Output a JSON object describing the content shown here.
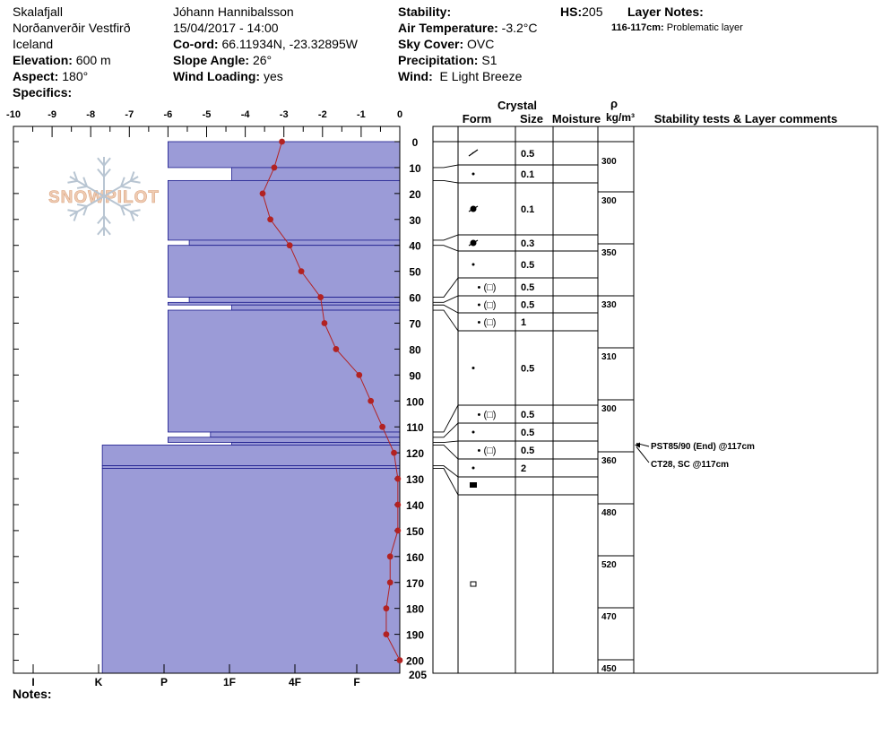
{
  "header": {
    "location_name": "Skalafjall",
    "region": "Norðanverðir Vestfirð",
    "country": "Iceland",
    "elevation_label": "Elevation:",
    "elevation_value": "600 m",
    "aspect_label": "Aspect:",
    "aspect_value": "180°",
    "specifics_label": "Specifics:",
    "observer": "Jóhann Hannibalsson",
    "datetime": "15/04/2017 - 14:00",
    "coord_label": "Co-ord:",
    "coord_value": "66.11934N, -23.32895W",
    "slope_label": "Slope Angle:",
    "slope_value": "26°",
    "wind_loading_label": "Wind Loading:",
    "wind_loading_value": "yes",
    "stability_label": "Stability:",
    "air_temp_label": "Air Temperature:",
    "air_temp_value": "-3.2°C",
    "sky_label": "Sky Cover:",
    "sky_value": "OVC",
    "precip_label": "Precipitation:",
    "precip_value": "S1",
    "wind_label": "Wind:",
    "wind_value": "E Light Breeze",
    "hs_label": "HS:",
    "hs_value": "205",
    "layer_notes_label": "Layer Notes:",
    "layer_note_depth": "116-117cm:",
    "layer_note_text": "Problematic layer"
  },
  "notes_label": "Notes:",
  "logo_text": "SNOWPILOT",
  "columns": {
    "crystal": "Crystal",
    "form": "Form",
    "size": "Size",
    "moisture": "Moisture",
    "rho": "ρ",
    "density_unit": "kg/m³",
    "stability": "Stability tests & Layer comments"
  },
  "stability_tests": [
    "PST85/90 (End) @117cm",
    "CT28, SC @117cm"
  ],
  "colors": {
    "hardness_fill": "#9b9bd7",
    "hardness_stroke": "#1a1a8c",
    "temp_line": "#b22222"
  },
  "chart_data": {
    "type": "snow_profile",
    "temp_axis": {
      "ticks": [
        -10,
        -9,
        -8,
        -7,
        -6,
        -5,
        -4,
        -3,
        -2,
        -1,
        0
      ],
      "range": [
        -10,
        0
      ]
    },
    "hardness_axis": [
      "I",
      "K",
      "P",
      "1F",
      "4F",
      "F"
    ],
    "depth_axis": {
      "ticks": [
        0,
        10,
        20,
        30,
        40,
        50,
        60,
        70,
        80,
        90,
        100,
        110,
        120,
        130,
        140,
        150,
        160,
        170,
        180,
        190,
        200
      ],
      "end_label": "205",
      "range": [
        0,
        205
      ]
    },
    "temperature": [
      {
        "depth": 0,
        "t": -3.05
      },
      {
        "depth": 10,
        "t": -3.25
      },
      {
        "depth": 20,
        "t": -3.55
      },
      {
        "depth": 30,
        "t": -3.35
      },
      {
        "depth": 40,
        "t": -2.85
      },
      {
        "depth": 50,
        "t": -2.55
      },
      {
        "depth": 60,
        "t": -2.05
      },
      {
        "depth": 70,
        "t": -1.95
      },
      {
        "depth": 80,
        "t": -1.65
      },
      {
        "depth": 90,
        "t": -1.05
      },
      {
        "depth": 100,
        "t": -0.75
      },
      {
        "depth": 110,
        "t": -0.45
      },
      {
        "depth": 120,
        "t": -0.15
      },
      {
        "depth": 130,
        "t": -0.05
      },
      {
        "depth": 140,
        "t": -0.05
      },
      {
        "depth": 150,
        "t": -0.05
      },
      {
        "depth": 160,
        "t": -0.25
      },
      {
        "depth": 170,
        "t": -0.25
      },
      {
        "depth": 180,
        "t": -0.35
      },
      {
        "depth": 190,
        "t": -0.35
      },
      {
        "depth": 200,
        "t": 0.0
      }
    ],
    "hardness_layers": [
      {
        "top": 0,
        "bottom": 10,
        "t": -6.0
      },
      {
        "top": 10,
        "bottom": 15,
        "t": -4.35
      },
      {
        "top": 15,
        "bottom": 38,
        "t": -6.0
      },
      {
        "top": 38,
        "bottom": 40,
        "t": -5.45
      },
      {
        "top": 40,
        "bottom": 60,
        "t": -6.0
      },
      {
        "top": 60,
        "bottom": 62,
        "t": -5.45
      },
      {
        "top": 62,
        "bottom": 63,
        "t": -6.0
      },
      {
        "top": 63,
        "bottom": 65,
        "t": -4.35
      },
      {
        "top": 65,
        "bottom": 112,
        "t": -6.0
      },
      {
        "top": 112,
        "bottom": 114,
        "t": -4.9
      },
      {
        "top": 114,
        "bottom": 116,
        "t": -6.0
      },
      {
        "top": 116,
        "bottom": 117,
        "t": -4.35
      },
      {
        "top": 117,
        "bottom": 125,
        "t": -7.7
      },
      {
        "top": 125,
        "bottom": 126,
        "t": -7.7
      },
      {
        "top": 126,
        "bottom": 205,
        "t": -7.7
      }
    ],
    "layer_boundaries": [
      0,
      10,
      15,
      38,
      40,
      60,
      62,
      63,
      65,
      112,
      114,
      116,
      117,
      125,
      126,
      205
    ],
    "grain_rows": [
      {
        "form": "decomposing",
        "size": "0.5"
      },
      {
        "form": "dot",
        "size": "0.1"
      },
      {
        "form": "graupel",
        "size": "0.1"
      },
      {
        "form": "graupel",
        "size": "0.3"
      },
      {
        "form": "dot",
        "size": "0.5"
      },
      {
        "form": "dot-square",
        "size": "0.5",
        "label": "• (□)"
      },
      {
        "form": "dot-square",
        "size": "0.5",
        "label": "• (□)"
      },
      {
        "form": "dot-square",
        "size": "1",
        "label": "• (□)"
      },
      {
        "form": "dot",
        "size": "0.5"
      },
      {
        "form": "dot-square",
        "size": "0.5",
        "label": "• (□)"
      },
      {
        "form": "dot",
        "size": "0.5"
      },
      {
        "form": "dot-square",
        "size": "0.5",
        "label": "• (□)"
      },
      {
        "form": "dot",
        "size": "2"
      },
      {
        "form": "ice",
        "size": ""
      },
      {
        "form": "crust",
        "size": ""
      }
    ],
    "densities": [
      "300",
      "300",
      "350",
      "330",
      "310",
      "300",
      "360",
      "480",
      "520",
      "470",
      "450"
    ]
  }
}
